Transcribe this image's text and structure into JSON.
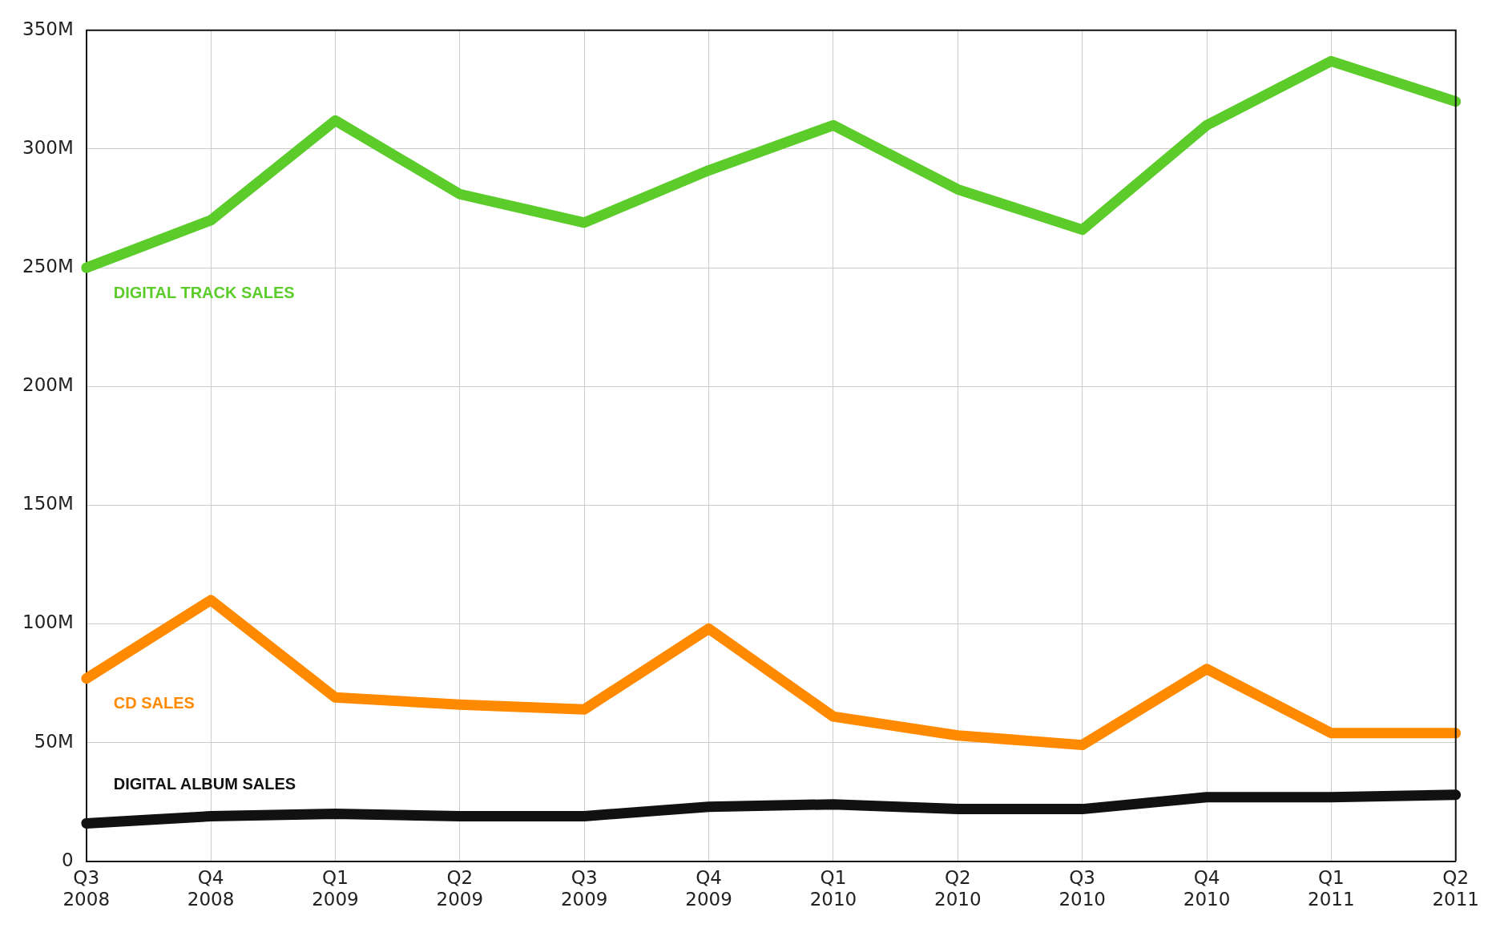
{
  "chart_data": {
    "type": "line",
    "categories": [
      "Q3 2008",
      "Q4 2008",
      "Q1 2009",
      "Q2 2009",
      "Q3 2009",
      "Q4 2009",
      "Q1 2010",
      "Q2 2010",
      "Q3 2010",
      "Q4 2010",
      "Q1 2011",
      "Q2 2011"
    ],
    "series": [
      {
        "name": "DIGITAL TRACK SALES",
        "color": "#5ccc2a",
        "values": [
          250,
          270,
          312,
          281,
          269,
          291,
          310,
          283,
          266,
          310,
          337,
          320
        ]
      },
      {
        "name": "CD SALES",
        "color": "#ff8a00",
        "values": [
          77,
          110,
          69,
          66,
          64,
          98,
          61,
          53,
          49,
          81,
          54,
          54
        ]
      },
      {
        "name": "DIGITAL ALBUM SALES",
        "color": "#111111",
        "values": [
          16,
          19,
          20,
          19,
          19,
          23,
          24,
          22,
          22,
          27,
          27,
          28
        ]
      }
    ],
    "ylim": [
      0,
      350
    ],
    "yticks": [
      {
        "value": 0,
        "label": "0"
      },
      {
        "value": 50,
        "label": "50M"
      },
      {
        "value": 100,
        "label": "100M"
      },
      {
        "value": 150,
        "label": "150M"
      },
      {
        "value": 200,
        "label": "200M"
      },
      {
        "value": 250,
        "label": "250M"
      },
      {
        "value": 300,
        "label": "300M"
      },
      {
        "value": 350,
        "label": "350M"
      }
    ],
    "grid": true,
    "marker": "none",
    "line_style": "solid"
  }
}
